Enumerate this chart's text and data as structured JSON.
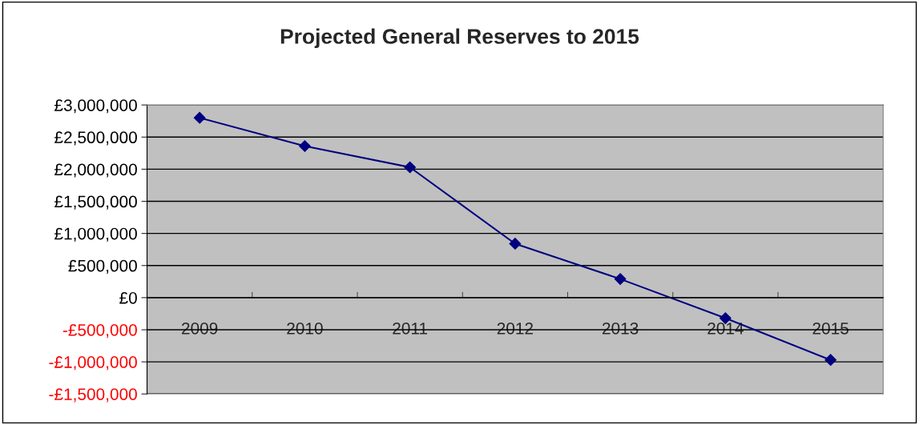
{
  "chart_data": {
    "type": "line",
    "title": "Projected General Reserves to 2015",
    "categories": [
      "2009",
      "2010",
      "2011",
      "2012",
      "2013",
      "2014",
      "2015"
    ],
    "series": [
      {
        "color": "#000080",
        "values": [
          2800000,
          2360000,
          2030000,
          840000,
          290000,
          -320000,
          -970000
        ]
      }
    ],
    "ylim": [
      -1500000,
      3000000
    ],
    "yticks": [
      {
        "value": -1500000,
        "label": "-£1,500,000"
      },
      {
        "value": -1000000,
        "label": "-£1,000,000"
      },
      {
        "value": -500000,
        "label": "-£500,000"
      },
      {
        "value": 0,
        "label": "£0"
      },
      {
        "value": 500000,
        "label": "£500,000"
      },
      {
        "value": 1000000,
        "label": "£1,000,000"
      },
      {
        "value": 1500000,
        "label": "£1,500,000"
      },
      {
        "value": 2000000,
        "label": "£2,000,000"
      },
      {
        "value": 2500000,
        "label": "£2,500,000"
      },
      {
        "value": 3000000,
        "label": "£3,000,000"
      }
    ],
    "grid": "y",
    "marker": "diamond",
    "line_style": "solid",
    "legend": false
  }
}
